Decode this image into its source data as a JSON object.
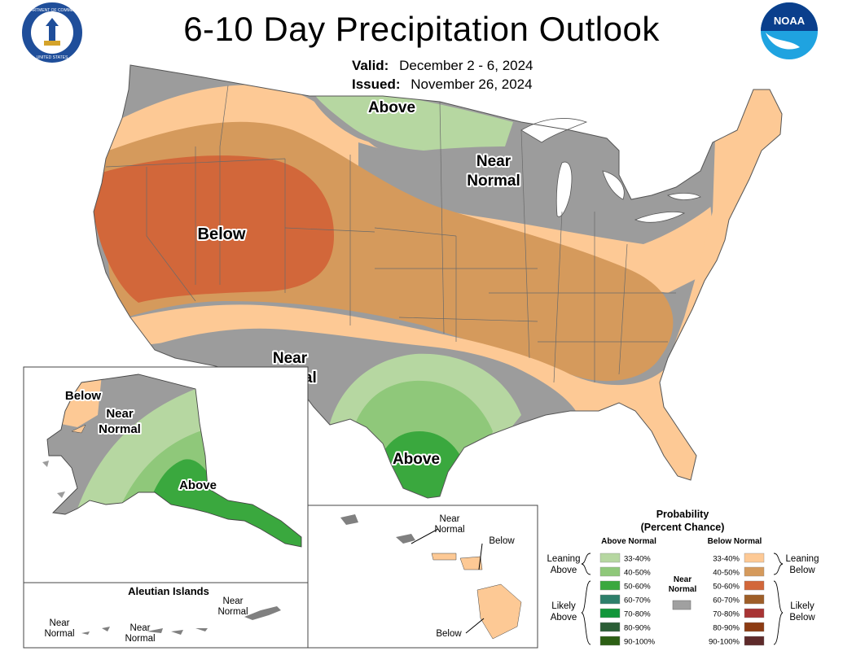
{
  "header": {
    "title": "6-10 Day Precipitation Outlook",
    "valid_label": "Valid:",
    "valid_dates": "December 2 - 6, 2024",
    "issued_label": "Issued:",
    "issued_date": "November 26, 2024"
  },
  "logos": {
    "left": "DEPARTMENT OF COMMERCE · UNITED STATES OF AMERICA",
    "right": "NOAA"
  },
  "region_labels": {
    "conus_above_north": "Above",
    "conus_near_normal_north_1": "Near",
    "conus_near_normal_north_2": "Normal",
    "conus_below": "Below",
    "conus_near_normal_south_1": "Near",
    "conus_near_normal_south_2": "Normal",
    "conus_above_south": "Above",
    "ak_below": "Below",
    "ak_near_normal_1": "Near",
    "ak_near_normal_2": "Normal",
    "ak_above": "Above",
    "hi_near_normal_1": "Near",
    "hi_near_normal_2": "Normal",
    "hi_below_1": "Below",
    "hi_below_2": "Below",
    "aleutian_title": "Aleutian Islands",
    "aleutian_near_normal_a1": "Near",
    "aleutian_near_normal_a2": "Normal",
    "aleutian_near_normal_b1": "Near",
    "aleutian_near_normal_b2": "Normal",
    "aleutian_near_normal_c1": "Near",
    "aleutian_near_normal_c2": "Normal"
  },
  "legend": {
    "title_1": "Probability",
    "title_2": "(Percent Chance)",
    "above_header": "Above Normal",
    "below_header": "Below Normal",
    "near_1": "Near",
    "near_2": "Normal",
    "near_color": "#a0a0a0",
    "leaning_above_1": "Leaning",
    "leaning_above_2": "Above",
    "likely_above_1": "Likely",
    "likely_above_2": "Above",
    "leaning_below_1": "Leaning",
    "leaning_below_2": "Below",
    "likely_below_1": "Likely",
    "likely_below_2": "Below",
    "above_bins": [
      {
        "range": "33-40%",
        "color": "#b6d7a1"
      },
      {
        "range": "40-50%",
        "color": "#8fc87a"
      },
      {
        "range": "50-60%",
        "color": "#3aa83e"
      },
      {
        "range": "60-70%",
        "color": "#2d7f6b"
      },
      {
        "range": "70-80%",
        "color": "#12963a"
      },
      {
        "range": "80-90%",
        "color": "#2b5e36"
      },
      {
        "range": "90-100%",
        "color": "#2c5f14"
      }
    ],
    "below_bins": [
      {
        "range": "33-40%",
        "color": "#fdc995"
      },
      {
        "range": "40-50%",
        "color": "#d59a5c"
      },
      {
        "range": "50-60%",
        "color": "#d2673a"
      },
      {
        "range": "60-70%",
        "color": "#9e5e28"
      },
      {
        "range": "70-80%",
        "color": "#a83434"
      },
      {
        "range": "80-90%",
        "color": "#8c3b12"
      },
      {
        "range": "90-100%",
        "color": "#5e2a2a"
      }
    ]
  },
  "colors": {
    "near_normal": "#9c9c9c",
    "above_33_40": "#b6d7a1",
    "above_40_50": "#8fc87a",
    "above_50_60": "#3aa83e",
    "below_33_40": "#fdc995",
    "below_40_50": "#d59a5c",
    "below_50_60": "#d2673a"
  }
}
